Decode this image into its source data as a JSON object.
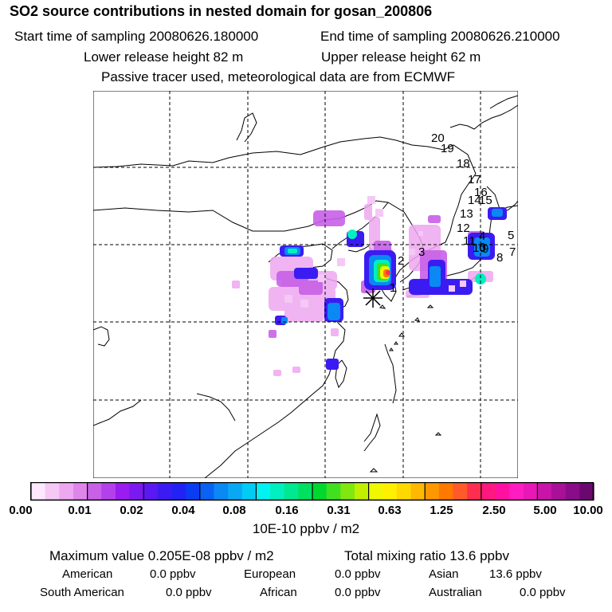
{
  "header": {
    "title": "SO2 source contributions in nested domain for gosan_200806",
    "start_time": "Start time of sampling 20080626.180000",
    "end_time": "End time of sampling 20080626.210000",
    "lower_height": "Lower release height   82 m",
    "upper_height": "Upper release height   62 m",
    "tracer_note": "Passive tracer used, meteorological data are from ECMWF"
  },
  "map": {
    "station_labels": [
      "1",
      "2",
      "3",
      "4",
      "5",
      "6",
      "7",
      "8",
      "9",
      "10",
      "11",
      "12",
      "13",
      "14",
      "15",
      "16",
      "17",
      "18",
      "19",
      "20"
    ],
    "receptor_marker": "receptor-star"
  },
  "colorbar": {
    "tick_labels": [
      "0.00",
      "0.01",
      "0.02",
      "0.04",
      "0.08",
      "0.16",
      "0.31",
      "0.63",
      "1.25",
      "2.50",
      "5.00",
      "10.00"
    ],
    "colors": [
      "#fde8fd",
      "#f5c8f5",
      "#eea8f0",
      "#e085ea",
      "#c860e8",
      "#b440ec",
      "#9a1cee",
      "#7b1af0",
      "#5b18f2",
      "#3a1cf2",
      "#2222f4",
      "#0a3cf4",
      "#0a62f4",
      "#0a88f4",
      "#0aa8f4",
      "#00ccf6",
      "#00f2f2",
      "#00f0c0",
      "#00e890",
      "#00e060",
      "#00d830",
      "#40e020",
      "#80e810",
      "#c0f000",
      "#f0f800",
      "#fff000",
      "#ffd800",
      "#ffb800",
      "#ff9800",
      "#ff7800",
      "#ff5a2a",
      "#ff2e50",
      "#ff1880",
      "#ff10a0",
      "#ff1cc0",
      "#e818b8",
      "#c814a8",
      "#a81098",
      "#8a0c88",
      "#6a0870"
    ],
    "units": "10E-10 ppbv / m2"
  },
  "stats": {
    "max_value": "Maximum value  0.205E-08 ppbv / m2",
    "total_mixing": "Total mixing ratio       13.6 ppbv",
    "regions": [
      {
        "name": "American",
        "value": "0.0 ppbv"
      },
      {
        "name": "European",
        "value": "0.0 ppbv"
      },
      {
        "name": "Asian",
        "value": "13.6 ppbv"
      },
      {
        "name": "South American",
        "value": "0.0 ppbv"
      },
      {
        "name": "African",
        "value": "0.0 ppbv"
      },
      {
        "name": "Australian",
        "value": "0.0 ppbv"
      }
    ]
  }
}
